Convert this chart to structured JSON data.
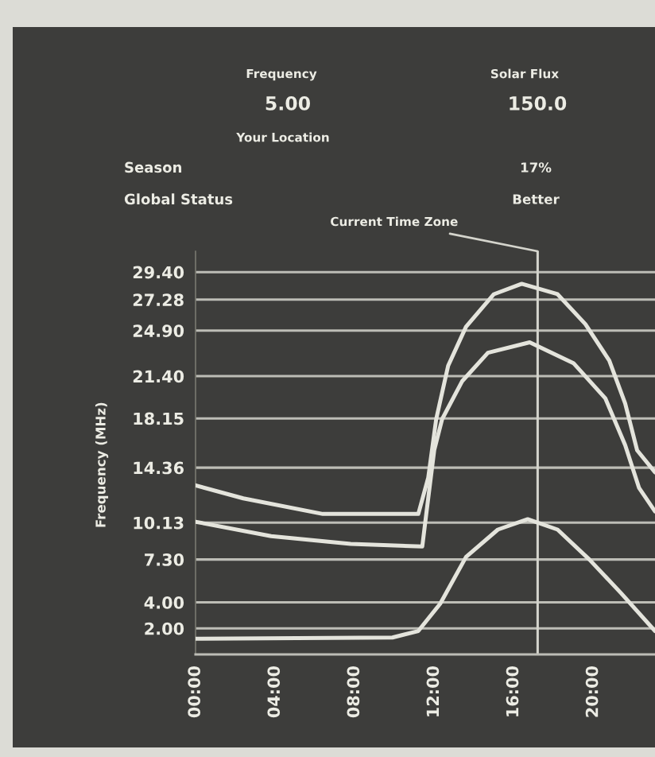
{
  "chart_data": {
    "type": "line",
    "ylabel": "Frequency (MHz)",
    "xlim": [
      0,
      23.1
    ],
    "xticks": [
      {
        "value": 0,
        "label": "00:00"
      },
      {
        "value": 4,
        "label": "04:00"
      },
      {
        "value": 8,
        "label": "08:00"
      },
      {
        "value": 12,
        "label": "12:00"
      },
      {
        "value": 16,
        "label": "16:00"
      },
      {
        "value": 20,
        "label": "20:00"
      }
    ],
    "ylim": [
      0,
      31
    ],
    "yticks": [
      {
        "value": 2,
        "label": "2.00"
      },
      {
        "value": 4,
        "label": "4.00"
      },
      {
        "value": 7.3,
        "label": "7.30"
      },
      10.13,
      14.36,
      18.15,
      {
        "value": 21.4,
        "label": "21.40"
      },
      {
        "value": 24.9,
        "label": "24.90"
      },
      27.28,
      {
        "value": 29.4,
        "label": "29.40"
      }
    ],
    "grid": "y",
    "series": [
      {
        "color": "#e4e4dc",
        "x": [
          0,
          2.4,
          6.4,
          11.2,
          11.7,
          12.1,
          12.7,
          13.6,
          15.0,
          16.4,
          18.2,
          19.6,
          20.8,
          21.6,
          22.2,
          23.1
        ],
        "values": [
          13.0,
          12.0,
          10.8,
          10.8,
          13.6,
          18.1,
          22.2,
          25.2,
          27.7,
          28.5,
          27.7,
          25.4,
          22.6,
          19.3,
          15.7,
          14.0
        ]
      },
      {
        "color": "#e4e4dc",
        "x": [
          0,
          3.8,
          7.8,
          11.4,
          11.6,
          12.0,
          12.4,
          13.4,
          14.7,
          16.8,
          19.0,
          20.6,
          21.6,
          22.3,
          23.1
        ],
        "values": [
          10.2,
          9.1,
          8.5,
          8.3,
          10.8,
          15.7,
          18.1,
          21.0,
          23.2,
          24.0,
          22.4,
          19.7,
          16.1,
          12.8,
          11.0
        ]
      },
      {
        "color": "#e4e4dc",
        "x": [
          0,
          9.9,
          11.2,
          12.3,
          13.6,
          15.2,
          16.7,
          18.2,
          19.8,
          21.4,
          23.1
        ],
        "values": [
          1.2,
          1.3,
          1.8,
          3.9,
          7.5,
          9.6,
          10.4,
          9.6,
          7.3,
          4.7,
          1.8
        ]
      }
    ],
    "ref_lines": [
      {
        "axis": "x",
        "value": 17.2,
        "label": "Current Time Zone",
        "color": "#d4d4cc"
      }
    ],
    "annotations": [
      "Frequency",
      "5.00",
      "Your Location",
      "Solar Flux",
      "150.0",
      "Season",
      "Global Status",
      "17%",
      "Better"
    ]
  }
}
